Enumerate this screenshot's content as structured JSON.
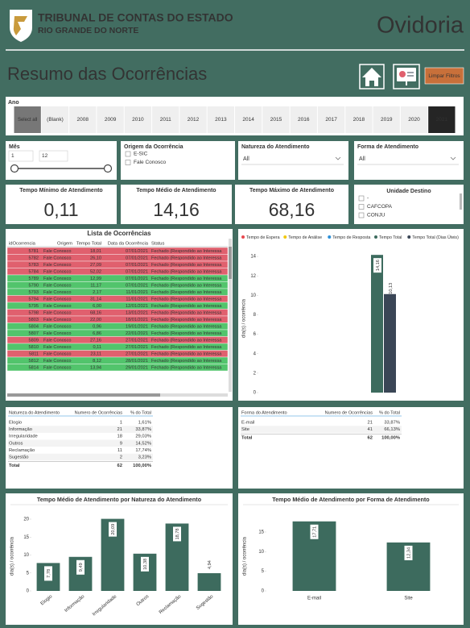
{
  "header": {
    "org_line1": "TRIBUNAL DE CONTAS DO ESTADO",
    "org_line2": "RIO GRANDE DO NORTE",
    "app_title": "Ovidoria"
  },
  "page_title": "Resumo das Ocorrências",
  "clear_button": "Limpar Filtros",
  "filters": {
    "year": {
      "label": "Ano",
      "options": [
        "Select all",
        "(Blank)",
        "2008",
        "2009",
        "2010",
        "2011",
        "2012",
        "2013",
        "2014",
        "2015",
        "2016",
        "2017",
        "2018",
        "2019",
        "2020",
        "2021"
      ]
    },
    "month": {
      "label": "Mês",
      "from": "1",
      "to": "12"
    },
    "origin": {
      "label": "Origem da Ocorrência",
      "options": [
        "E-SIC",
        "Fale Conosco"
      ]
    },
    "nature": {
      "label": "Natureza do Atendimento",
      "value": "All"
    },
    "form": {
      "label": "Forma de Atendimento",
      "value": "All"
    },
    "unit": {
      "label": "Unidade Destino",
      "options": [
        "-",
        "CAFCOPA",
        "CONJU"
      ]
    }
  },
  "kpis": [
    {
      "label": "Tempo Mínimo de Atendimento",
      "value": "0,11"
    },
    {
      "label": "Tempo Médio de Atendimento",
      "value": "14,16"
    },
    {
      "label": "Tempo Máximo de Atendimento",
      "value": "68,16"
    }
  ],
  "occurrences": {
    "title": "Lista de Ocorrências",
    "columns": [
      "idOcorrencia",
      "Origem",
      "Tempo Total",
      "Data da Ocorrência",
      "Status"
    ],
    "rows": [
      [
        "5781",
        "Fale Conosco",
        "18,01",
        "07/01/2021",
        "Fechado (Respondido ao Interessa"
      ],
      [
        "5782",
        "Fale Conosco",
        "26,10",
        "07/01/2021",
        "Fechado (Respondido ao Interessa"
      ],
      [
        "5783",
        "Fale Conosco",
        "27,09",
        "07/01/2021",
        "Fechado (Respondido ao Interessa"
      ],
      [
        "5784",
        "Fale Conosco",
        "52,02",
        "07/01/2021",
        "Fechado (Respondido ao Interessa"
      ],
      [
        "5789",
        "Fale Conosco",
        "12,99",
        "07/01/2021",
        "Fechado (Respondido ao Interessa"
      ],
      [
        "5790",
        "Fale Conosco",
        "11,17",
        "07/01/2021",
        "Fechado (Respondido ao Interessa"
      ],
      [
        "5793",
        "Fale Conosco",
        "2,17",
        "11/01/2021",
        "Fechado (Respondido ao Interessa"
      ],
      [
        "5794",
        "Fale Conosco",
        "31,14",
        "11/01/2021",
        "Fechado (Respondido ao Interessa"
      ],
      [
        "5795",
        "Fale Conosco",
        "6,00",
        "12/01/2021",
        "Fechado (Respondido ao Interessa"
      ],
      [
        "5798",
        "Fale Conosco",
        "68,16",
        "13/01/2021",
        "Fechado (Respondido ao Interessa"
      ],
      [
        "5803",
        "Fale Conosco",
        "22,00",
        "18/01/2021",
        "Fechado (Respondido ao Interessa"
      ],
      [
        "5804",
        "Fale Conosco",
        "0,96",
        "19/01/2021",
        "Fechado (Respondido ao Interessa"
      ],
      [
        "5807",
        "Fale Conosco",
        "6,86",
        "22/01/2021",
        "Fechado (Respondido ao Interessa"
      ],
      [
        "5809",
        "Fale Conosco",
        "27,16",
        "27/01/2021",
        "Fechado (Respondido ao Interessa"
      ],
      [
        "5810",
        "Fale Conosco",
        "0,11",
        "27/01/2021",
        "Fechado (Respondido ao Interessa"
      ],
      [
        "5811",
        "Fale Conosco",
        "23,11",
        "27/01/2021",
        "Fechado (Respondido ao Interessa"
      ],
      [
        "5812",
        "Fale Conosco",
        "8,12",
        "28/01/2021",
        "Fechado (Respondido ao Interessa"
      ],
      [
        "5814",
        "Fale Conosco",
        "13,94",
        "29/01/2021",
        "Fechado (Respondido ao Interessa"
      ]
    ],
    "row_colors": [
      "#e0606e",
      "#e0606e",
      "#e0606e",
      "#e0606e",
      "#52c46c",
      "#52c46c",
      "#52c46c",
      "#e0606e",
      "#52c46c",
      "#e0606e",
      "#e0606e",
      "#52c46c",
      "#52c46c",
      "#e0606e",
      "#52c46c",
      "#e0606e",
      "#52c46c",
      "#52c46c"
    ]
  },
  "nature_table": {
    "columns": [
      "Natureza do Atendimento",
      "Numero de Ocorrências",
      "% do Total"
    ],
    "rows": [
      [
        "Elogio",
        "1",
        "1,61%"
      ],
      [
        "Informação",
        "21",
        "33,87%"
      ],
      [
        "Irregularidade",
        "18",
        "29,03%"
      ],
      [
        "Outros",
        "9",
        "14,52%"
      ],
      [
        "Reclamação",
        "11",
        "17,74%"
      ],
      [
        "Sugestão",
        "2",
        "3,23%"
      ]
    ],
    "total": [
      "Total",
      "62",
      "100,00%"
    ]
  },
  "form_table": {
    "columns": [
      "Forma do Atendimento",
      "Numero de Ocorrências",
      "% do Total"
    ],
    "rows": [
      [
        "E-mail",
        "21",
        "33,87%"
      ],
      [
        "Site",
        "41",
        "66,13%"
      ]
    ],
    "total": [
      "Total",
      "62",
      "100,00%"
    ]
  },
  "chart_data": [
    {
      "type": "grouped_bar",
      "y_label": "dia(s) / ocorrência",
      "categories": [
        null
      ],
      "legend": "top-left",
      "series": [
        {
          "name": "Tempo de Espera",
          "color": "#e8484f",
          "values": [
            null
          ]
        },
        {
          "name": "Tempo de Análise",
          "color": "#f2c80f",
          "values": [
            null
          ]
        },
        {
          "name": "Tempo de Resposta",
          "color": "#2b8fd8",
          "values": [
            null
          ]
        },
        {
          "name": "Tempo Total",
          "color": "#3d6b5e",
          "values": [
            14.16
          ],
          "value_labels": [
            "14,16"
          ]
        },
        {
          "name": "Tempo Total (Dias Úteis)",
          "color": "#3a4656",
          "values": [
            10.13
          ],
          "value_labels": [
            "10,13"
          ]
        }
      ],
      "ylim": [
        0,
        15.5
      ],
      "yticks": [
        0,
        2,
        4,
        6,
        8,
        10,
        12,
        14
      ]
    },
    {
      "type": "bar",
      "title": "Tempo Médio de Atendimento por Natureza do Atendimento",
      "y_label": "dia(s) / ocorrência",
      "categories": [
        "Elogio",
        "Informação",
        "Irregularidade",
        "Outros",
        "Reclamação",
        "Sugestão"
      ],
      "values": [
        7.78,
        9.49,
        20.09,
        10.38,
        18.78,
        4.94
      ],
      "value_labels": [
        "7,78",
        "9,49",
        "20,09",
        "10,38",
        "18,78",
        "4,94"
      ],
      "color": "#3d6b5e",
      "ylim": [
        0,
        21
      ],
      "yticks": [
        0,
        5,
        10,
        15,
        20
      ],
      "rotate_labels": true
    },
    {
      "type": "bar",
      "title": "Tempo Médio de Atendimento por Forma de Atendimento",
      "y_label": "dia(s) / ocorrência",
      "categories": [
        "E-mail",
        "Site"
      ],
      "values": [
        17.71,
        12.34
      ],
      "value_labels": [
        "17,71",
        "12,34"
      ],
      "color": "#3d6b5e",
      "ylim": [
        0,
        19
      ],
      "yticks": [
        0,
        5,
        10,
        15
      ],
      "rotate_labels": false
    }
  ]
}
